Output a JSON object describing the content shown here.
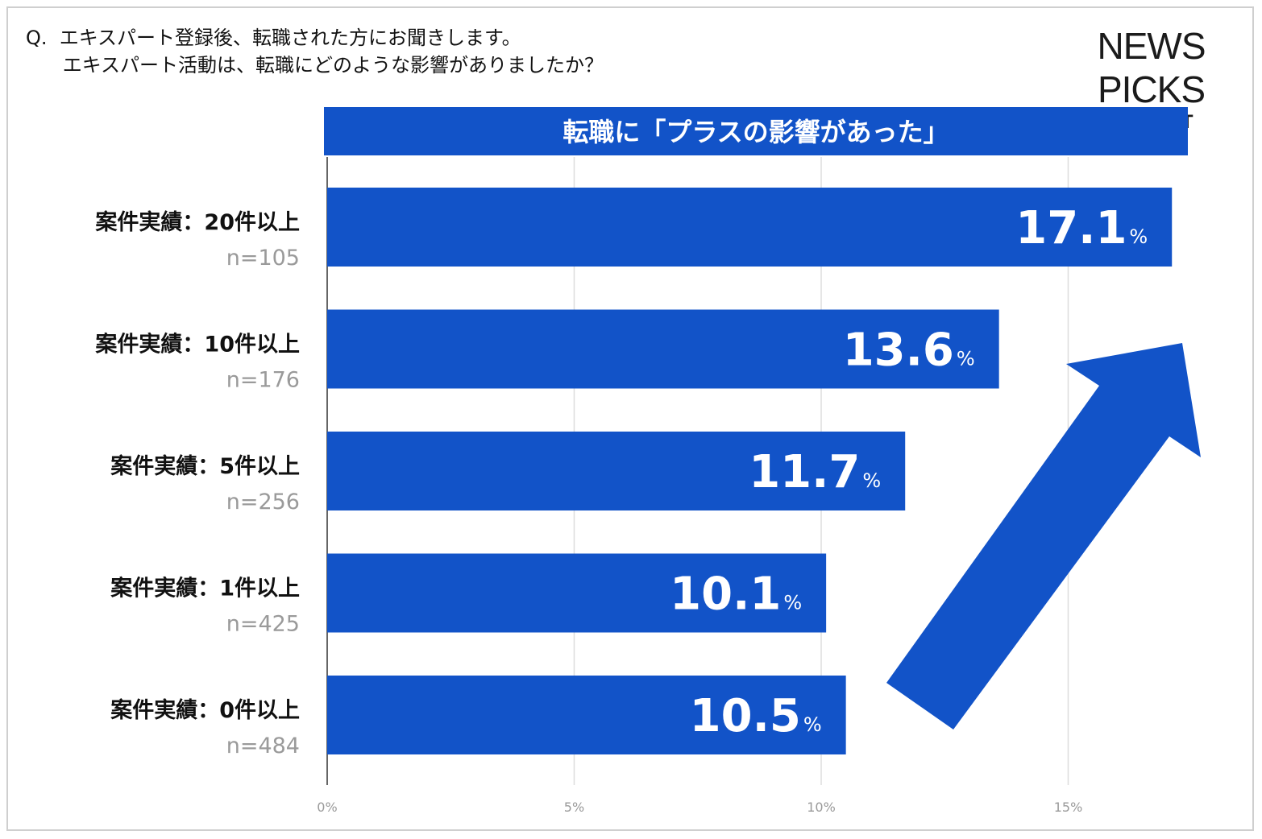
{
  "question": {
    "line1": "Q.  エキスパート登録後、転職された方にお聞きします。",
    "line2": "      エキスパート活動は、転職にどのような影響がありましたか？"
  },
  "logo": {
    "main": "NEWS PICKS",
    "sub": "EXPERT"
  },
  "colors": {
    "bar": "#1253C8",
    "arrow": "#1253C8",
    "grid": "#dddddd",
    "axis": "#333333"
  },
  "chart_data": {
    "type": "bar",
    "orientation": "horizontal",
    "title": "転職に「プラスの影響があった」",
    "categories": [
      "案件実績：20件以上",
      "案件実績：10件以上",
      "案件実績：5件以上",
      "案件実績：1件以上",
      "案件実績：0件以上"
    ],
    "sample_sizes": [
      "n=105",
      "n=176",
      "n=256",
      "n=425",
      "n=484"
    ],
    "values": [
      17.1,
      13.6,
      11.7,
      10.1,
      10.5
    ],
    "value_labels": [
      "17.1",
      "13.6",
      "11.7",
      "10.1",
      "10.5"
    ],
    "value_unit": "%",
    "xlim": [
      0,
      17.5
    ],
    "xticks": [
      0,
      5,
      10,
      15
    ],
    "xtick_labels": [
      "0%",
      "5%",
      "10%",
      "15%"
    ],
    "grid": true,
    "annotation": "upward-trend-arrow"
  }
}
